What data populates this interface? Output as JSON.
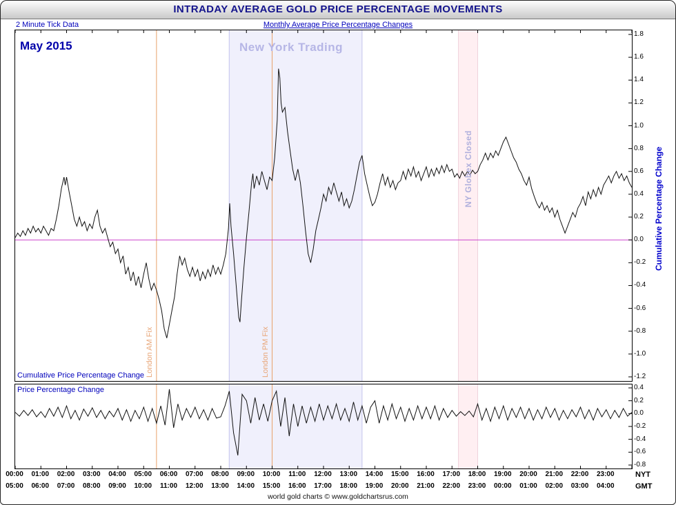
{
  "header": {
    "title": "INTRADAY AVERAGE GOLD PRICE PERCENTAGE MOVEMENTS",
    "tick_note": "2 Minute Tick Data",
    "center_link": "Monthly Average Price Percentage Changes"
  },
  "labels": {
    "month": "May 2015",
    "nyt": "NYT",
    "gmt": "GMT",
    "footer": "world gold charts © www.goldchartsrus.com"
  },
  "colors": {
    "accent_blue": "#0000bb",
    "line_black": "#111111",
    "zero_magenta": "#cc44cc",
    "fix_orange": "#e8a06a",
    "band_lavender": "rgba(228,228,250,0.55)",
    "band_lavender_edge": "#c3c3ec",
    "band_pink": "rgba(255,230,235,0.65)",
    "band_pink_edge": "#f0d2dc"
  },
  "chart_data": {
    "type": "line",
    "title": "Intraday Average Gold Price Percentage Movements - May 2015",
    "x_range": [
      0,
      24
    ],
    "x_tick_step_hours": 1,
    "x_labels_nyt": [
      "00:00",
      "01:00",
      "02:00",
      "03:00",
      "04:00",
      "05:00",
      "06:00",
      "07:00",
      "08:00",
      "09:00",
      "10:00",
      "11:00",
      "12:00",
      "13:00",
      "14:00",
      "15:00",
      "16:00",
      "17:00",
      "18:00",
      "19:00",
      "20:00",
      "21:00",
      "22:00",
      "23:00"
    ],
    "x_labels_gmt": [
      "05:00",
      "06:00",
      "07:00",
      "08:00",
      "09:00",
      "10:00",
      "11:00",
      "12:00",
      "13:00",
      "14:00",
      "15:00",
      "16:00",
      "17:00",
      "18:00",
      "19:00",
      "20:00",
      "21:00",
      "22:00",
      "23:00",
      "00:00",
      "01:00",
      "02:00",
      "03:00",
      "04:00"
    ],
    "zero_line": 0.0,
    "bands": [
      {
        "label": "New York Trading",
        "start": 8.33,
        "end": 13.5,
        "fill": "rgba(228,228,250,0.55)",
        "edge": "#c3c3ec"
      },
      {
        "label": "NY Globex Closed",
        "start": 17.25,
        "end": 18.0,
        "fill": "rgba(255,230,235,0.65)",
        "edge": "#f0d2dc"
      }
    ],
    "vlines": [
      {
        "label": "London AM Fix",
        "t": 5.5,
        "color": "#e8a06a"
      },
      {
        "label": "London PM Fix",
        "t": 10.0,
        "color": "#e8a06a"
      }
    ],
    "panels": [
      {
        "name": "cumulative",
        "label": "Cumulative Price Percentage Change",
        "axis_label": "Cumulative Percentage Change",
        "ylim": [
          -1.2,
          1.8
        ],
        "ytick_step": 0.2,
        "points": [
          [
            0,
            0.02
          ],
          [
            0.1,
            0.06
          ],
          [
            0.2,
            0.03
          ],
          [
            0.3,
            0.08
          ],
          [
            0.4,
            0.04
          ],
          [
            0.5,
            0.1
          ],
          [
            0.6,
            0.06
          ],
          [
            0.7,
            0.12
          ],
          [
            0.8,
            0.07
          ],
          [
            0.9,
            0.1
          ],
          [
            1,
            0.06
          ],
          [
            1.1,
            0.12
          ],
          [
            1.2,
            0.08
          ],
          [
            1.3,
            0.04
          ],
          [
            1.4,
            0.1
          ],
          [
            1.5,
            0.08
          ],
          [
            1.6,
            0.18
          ],
          [
            1.7,
            0.3
          ],
          [
            1.8,
            0.45
          ],
          [
            1.9,
            0.55
          ],
          [
            1.95,
            0.48
          ],
          [
            2,
            0.55
          ],
          [
            2.1,
            0.42
          ],
          [
            2.2,
            0.3
          ],
          [
            2.3,
            0.18
          ],
          [
            2.4,
            0.12
          ],
          [
            2.5,
            0.2
          ],
          [
            2.6,
            0.12
          ],
          [
            2.7,
            0.16
          ],
          [
            2.8,
            0.08
          ],
          [
            2.9,
            0.14
          ],
          [
            3,
            0.1
          ],
          [
            3.1,
            0.2
          ],
          [
            3.2,
            0.26
          ],
          [
            3.3,
            0.12
          ],
          [
            3.4,
            0.06
          ],
          [
            3.5,
            0.1
          ],
          [
            3.6,
            0.02
          ],
          [
            3.7,
            -0.06
          ],
          [
            3.8,
            -0.02
          ],
          [
            3.9,
            -0.12
          ],
          [
            4,
            -0.08
          ],
          [
            4.1,
            -0.2
          ],
          [
            4.2,
            -0.14
          ],
          [
            4.3,
            -0.3
          ],
          [
            4.4,
            -0.24
          ],
          [
            4.5,
            -0.36
          ],
          [
            4.6,
            -0.28
          ],
          [
            4.7,
            -0.4
          ],
          [
            4.8,
            -0.32
          ],
          [
            4.9,
            -0.42
          ],
          [
            5,
            -0.3
          ],
          [
            5.1,
            -0.2
          ],
          [
            5.2,
            -0.34
          ],
          [
            5.3,
            -0.44
          ],
          [
            5.4,
            -0.38
          ],
          [
            5.5,
            -0.44
          ],
          [
            5.6,
            -0.52
          ],
          [
            5.7,
            -0.62
          ],
          [
            5.8,
            -0.78
          ],
          [
            5.9,
            -0.86
          ],
          [
            6,
            -0.74
          ],
          [
            6.1,
            -0.62
          ],
          [
            6.2,
            -0.5
          ],
          [
            6.3,
            -0.3
          ],
          [
            6.4,
            -0.14
          ],
          [
            6.5,
            -0.22
          ],
          [
            6.6,
            -0.16
          ],
          [
            6.7,
            -0.26
          ],
          [
            6.8,
            -0.32
          ],
          [
            6.9,
            -0.24
          ],
          [
            7,
            -0.32
          ],
          [
            7.1,
            -0.26
          ],
          [
            7.2,
            -0.36
          ],
          [
            7.3,
            -0.28
          ],
          [
            7.4,
            -0.34
          ],
          [
            7.5,
            -0.26
          ],
          [
            7.6,
            -0.32
          ],
          [
            7.7,
            -0.22
          ],
          [
            7.8,
            -0.3
          ],
          [
            7.9,
            -0.24
          ],
          [
            8,
            -0.3
          ],
          [
            8.1,
            -0.22
          ],
          [
            8.2,
            -0.12
          ],
          [
            8.3,
            0.1
          ],
          [
            8.35,
            0.32
          ],
          [
            8.4,
            0.12
          ],
          [
            8.5,
            -0.12
          ],
          [
            8.6,
            -0.4
          ],
          [
            8.7,
            -0.68
          ],
          [
            8.75,
            -0.72
          ],
          [
            8.8,
            -0.55
          ],
          [
            8.9,
            -0.25
          ],
          [
            9,
            0.02
          ],
          [
            9.1,
            0.25
          ],
          [
            9.2,
            0.5
          ],
          [
            9.25,
            0.58
          ],
          [
            9.3,
            0.45
          ],
          [
            9.4,
            0.56
          ],
          [
            9.5,
            0.48
          ],
          [
            9.6,
            0.6
          ],
          [
            9.7,
            0.52
          ],
          [
            9.8,
            0.44
          ],
          [
            9.9,
            0.55
          ],
          [
            10,
            0.52
          ],
          [
            10.1,
            0.72
          ],
          [
            10.2,
            1.05
          ],
          [
            10.25,
            1.5
          ],
          [
            10.3,
            1.42
          ],
          [
            10.35,
            1.2
          ],
          [
            10.4,
            1.12
          ],
          [
            10.5,
            1.16
          ],
          [
            10.6,
            0.95
          ],
          [
            10.7,
            0.78
          ],
          [
            10.8,
            0.62
          ],
          [
            10.9,
            0.52
          ],
          [
            11,
            0.62
          ],
          [
            11.1,
            0.5
          ],
          [
            11.2,
            0.3
          ],
          [
            11.3,
            0.08
          ],
          [
            11.4,
            -0.12
          ],
          [
            11.5,
            -0.2
          ],
          [
            11.6,
            -0.08
          ],
          [
            11.7,
            0.08
          ],
          [
            11.8,
            0.18
          ],
          [
            11.9,
            0.28
          ],
          [
            12,
            0.4
          ],
          [
            12.1,
            0.34
          ],
          [
            12.2,
            0.46
          ],
          [
            12.3,
            0.4
          ],
          [
            12.4,
            0.5
          ],
          [
            12.5,
            0.42
          ],
          [
            12.6,
            0.34
          ],
          [
            12.7,
            0.42
          ],
          [
            12.8,
            0.3
          ],
          [
            12.9,
            0.36
          ],
          [
            13,
            0.28
          ],
          [
            13.1,
            0.34
          ],
          [
            13.2,
            0.44
          ],
          [
            13.3,
            0.56
          ],
          [
            13.4,
            0.68
          ],
          [
            13.5,
            0.74
          ],
          [
            13.6,
            0.58
          ],
          [
            13.7,
            0.48
          ],
          [
            13.8,
            0.38
          ],
          [
            13.9,
            0.3
          ],
          [
            14,
            0.33
          ],
          [
            14.1,
            0.4
          ],
          [
            14.2,
            0.5
          ],
          [
            14.3,
            0.58
          ],
          [
            14.4,
            0.48
          ],
          [
            14.5,
            0.55
          ],
          [
            14.6,
            0.46
          ],
          [
            14.7,
            0.52
          ],
          [
            14.8,
            0.44
          ],
          [
            14.9,
            0.5
          ],
          [
            15,
            0.52
          ],
          [
            15.1,
            0.6
          ],
          [
            15.2,
            0.53
          ],
          [
            15.3,
            0.62
          ],
          [
            15.4,
            0.56
          ],
          [
            15.5,
            0.64
          ],
          [
            15.6,
            0.55
          ],
          [
            15.7,
            0.6
          ],
          [
            15.8,
            0.52
          ],
          [
            15.9,
            0.58
          ],
          [
            16,
            0.64
          ],
          [
            16.1,
            0.55
          ],
          [
            16.2,
            0.62
          ],
          [
            16.3,
            0.56
          ],
          [
            16.4,
            0.63
          ],
          [
            16.5,
            0.58
          ],
          [
            16.6,
            0.65
          ],
          [
            16.7,
            0.59
          ],
          [
            16.8,
            0.66
          ],
          [
            16.9,
            0.6
          ],
          [
            17,
            0.62
          ],
          [
            17.1,
            0.55
          ],
          [
            17.2,
            0.58
          ],
          [
            17.3,
            0.54
          ],
          [
            17.4,
            0.6
          ],
          [
            17.5,
            0.56
          ],
          [
            17.6,
            0.6
          ],
          [
            17.7,
            0.57
          ],
          [
            17.8,
            0.61
          ],
          [
            17.9,
            0.58
          ],
          [
            18,
            0.6
          ],
          [
            18.1,
            0.66
          ],
          [
            18.2,
            0.7
          ],
          [
            18.3,
            0.76
          ],
          [
            18.4,
            0.7
          ],
          [
            18.5,
            0.76
          ],
          [
            18.6,
            0.72
          ],
          [
            18.7,
            0.78
          ],
          [
            18.8,
            0.74
          ],
          [
            18.9,
            0.8
          ],
          [
            19,
            0.86
          ],
          [
            19.1,
            0.9
          ],
          [
            19.2,
            0.84
          ],
          [
            19.3,
            0.78
          ],
          [
            19.4,
            0.72
          ],
          [
            19.5,
            0.68
          ],
          [
            19.6,
            0.62
          ],
          [
            19.7,
            0.58
          ],
          [
            19.8,
            0.52
          ],
          [
            19.9,
            0.48
          ],
          [
            20,
            0.55
          ],
          [
            20.1,
            0.45
          ],
          [
            20.2,
            0.38
          ],
          [
            20.3,
            0.32
          ],
          [
            20.4,
            0.28
          ],
          [
            20.5,
            0.33
          ],
          [
            20.6,
            0.26
          ],
          [
            20.7,
            0.3
          ],
          [
            20.8,
            0.24
          ],
          [
            20.9,
            0.28
          ],
          [
            21,
            0.2
          ],
          [
            21.1,
            0.26
          ],
          [
            21.2,
            0.18
          ],
          [
            21.3,
            0.12
          ],
          [
            21.4,
            0.06
          ],
          [
            21.5,
            0.12
          ],
          [
            21.6,
            0.18
          ],
          [
            21.7,
            0.24
          ],
          [
            21.8,
            0.2
          ],
          [
            21.9,
            0.28
          ],
          [
            22,
            0.32
          ],
          [
            22.1,
            0.38
          ],
          [
            22.2,
            0.3
          ],
          [
            22.3,
            0.42
          ],
          [
            22.4,
            0.36
          ],
          [
            22.5,
            0.44
          ],
          [
            22.6,
            0.38
          ],
          [
            22.7,
            0.46
          ],
          [
            22.8,
            0.4
          ],
          [
            22.9,
            0.48
          ],
          [
            23,
            0.52
          ],
          [
            23.1,
            0.56
          ],
          [
            23.2,
            0.5
          ],
          [
            23.3,
            0.56
          ],
          [
            23.4,
            0.6
          ],
          [
            23.5,
            0.54
          ],
          [
            23.6,
            0.58
          ],
          [
            23.7,
            0.52
          ],
          [
            23.8,
            0.56
          ],
          [
            23.9,
            0.5
          ],
          [
            24,
            0.46
          ]
        ]
      },
      {
        "name": "change",
        "label": "Price Percentage Change",
        "ylim": [
          -0.8,
          0.4
        ],
        "ytick_step": 0.2,
        "step_minutes": 10,
        "values": [
          0.02,
          -0.04,
          0.05,
          -0.03,
          0.06,
          -0.05,
          0.03,
          -0.06,
          0.08,
          -0.04,
          0.1,
          -0.06,
          0.12,
          -0.08,
          0.05,
          -0.1,
          0.07,
          -0.04,
          0.09,
          -0.06,
          0.05,
          -0.08,
          0.04,
          -0.05,
          0.08,
          -0.1,
          0.06,
          -0.12,
          0.05,
          -0.08,
          0.1,
          -0.12,
          0.08,
          -0.15,
          0.12,
          -0.18,
          0.38,
          -0.22,
          0.15,
          -0.1,
          0.08,
          -0.06,
          0.1,
          -0.08,
          0.06,
          -0.1,
          0.08,
          -0.07,
          -0.05,
          0.12,
          0.35,
          -0.3,
          -0.65,
          0.3,
          0.2,
          -0.15,
          0.25,
          -0.1,
          0.15,
          -0.12,
          0.2,
          0.35,
          -0.2,
          0.25,
          -0.35,
          0.15,
          -0.2,
          0.12,
          -0.15,
          0.1,
          -0.12,
          0.15,
          -0.1,
          0.12,
          -0.08,
          0.15,
          -0.1,
          0.08,
          -0.12,
          0.18,
          -0.1,
          0.12,
          -0.15,
          0.1,
          0.2,
          -0.15,
          0.12,
          -0.1,
          0.15,
          -0.08,
          0.1,
          -0.12,
          0.08,
          -0.1,
          0.12,
          -0.08,
          0.1,
          -0.08,
          0.12,
          -0.1,
          0.08,
          -0.06,
          0.05,
          -0.04,
          0.03,
          -0.03,
          0.04,
          -0.05,
          0.15,
          -0.1,
          0.08,
          -0.12,
          0.1,
          -0.08,
          0.12,
          -0.1,
          0.08,
          -0.06,
          0.1,
          -0.08,
          0.08,
          -0.1,
          0.06,
          -0.08,
          0.1,
          -0.06,
          0.08,
          -0.1,
          0.05,
          -0.08,
          0.06,
          -0.05,
          0.1,
          -0.08,
          0.06,
          -0.1,
          0.08,
          -0.05,
          0.06,
          -0.08,
          0.05,
          -0.06,
          0.08,
          -0.04,
          0.02
        ]
      }
    ]
  }
}
